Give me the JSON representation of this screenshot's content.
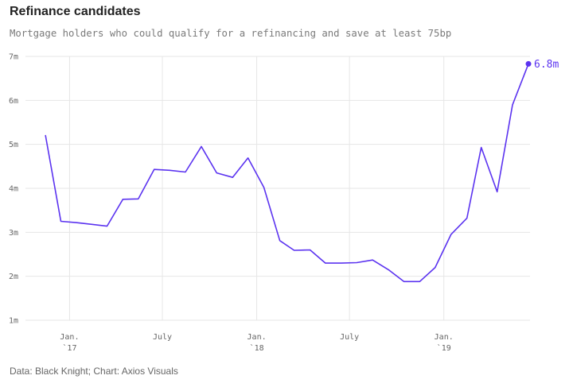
{
  "title": "Refinance candidates",
  "subtitle": "Mortgage holders who could qualify for a refinancing and save at least 75bp",
  "source": "Data: Black Knight; Chart: Axios Visuals",
  "colors": {
    "line": "#5b33f0",
    "grid": "#e6e6e6",
    "text": "#666666"
  },
  "chart_data": {
    "type": "line",
    "title": "Refinance candidates",
    "xlabel": "",
    "ylabel": "",
    "ylim": [
      1,
      7
    ],
    "y_ticks": [
      {
        "value": 1,
        "label": "1m"
      },
      {
        "value": 2,
        "label": "2m"
      },
      {
        "value": 3,
        "label": "3m"
      },
      {
        "value": 4,
        "label": "4m"
      },
      {
        "value": 5,
        "label": "5m"
      },
      {
        "value": 6,
        "label": "6m"
      },
      {
        "value": 7,
        "label": "7m"
      }
    ],
    "x_ticks": [
      {
        "month": "2017-01",
        "line1": "Jan.",
        "line2": "`17"
      },
      {
        "month": "2017-07",
        "line1": "July",
        "line2": ""
      },
      {
        "month": "2018-01",
        "line1": "Jan.",
        "line2": "`18"
      },
      {
        "month": "2018-07",
        "line1": "July",
        "line2": ""
      },
      {
        "month": "2019-01",
        "line1": "Jan.",
        "line2": "`19"
      }
    ],
    "end_label": "6.8m",
    "series": [
      {
        "x": [
          "2016-11-15",
          "2016-12-15",
          "2017-01-15",
          "2017-02-15",
          "2017-03-15",
          "2017-04-15",
          "2017-05-15",
          "2017-06-15",
          "2017-07-15",
          "2017-08-15",
          "2017-09-15",
          "2017-10-15",
          "2017-11-15",
          "2017-12-15",
          "2018-01-15",
          "2018-02-15",
          "2018-03-15",
          "2018-04-15",
          "2018-05-15",
          "2018-06-15",
          "2018-07-15",
          "2018-08-15",
          "2018-09-15",
          "2018-10-15",
          "2018-11-15",
          "2018-12-15",
          "2019-01-15",
          "2019-02-15",
          "2019-03-15",
          "2019-04-15",
          "2019-05-15",
          "2019-06-15"
        ],
        "values": [
          5.2,
          3.25,
          3.22,
          3.18,
          3.14,
          3.75,
          3.76,
          4.43,
          4.41,
          4.37,
          4.95,
          4.35,
          4.25,
          4.69,
          4.02,
          2.81,
          2.59,
          2.6,
          2.3,
          2.3,
          2.31,
          2.37,
          2.15,
          1.88,
          1.88,
          2.2,
          2.95,
          3.32,
          4.93,
          3.92,
          5.9,
          6.83
        ]
      }
    ]
  }
}
